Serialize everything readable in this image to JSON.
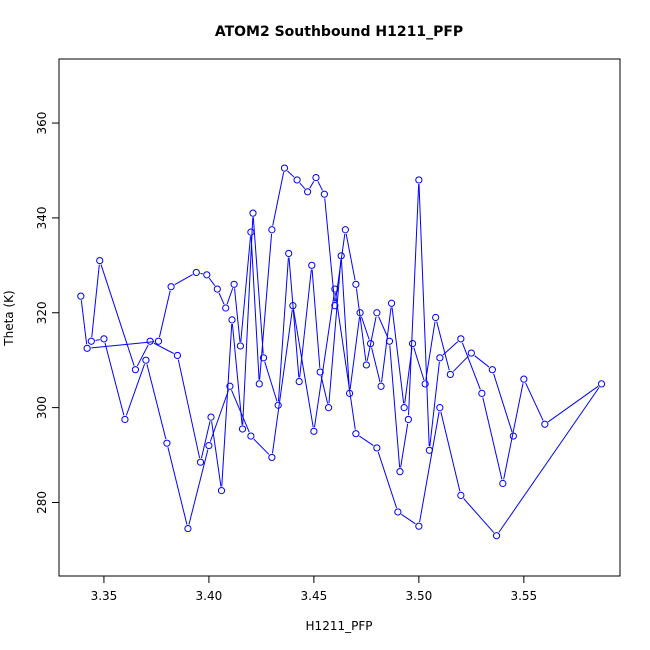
{
  "chart_data": {
    "type": "line",
    "title": "ATOM2 Southbound H1211_PFP",
    "xlabel": "H1211_PFP",
    "ylabel": "Theta (K)",
    "xlim": [
      3.3286,
      3.5958
    ],
    "ylim": [
      264.5,
      373.5
    ],
    "xticks": [
      "3.35",
      "3.40",
      "3.45",
      "3.50",
      "3.55"
    ],
    "yticks": [
      "280",
      "300",
      "320",
      "340",
      "360"
    ],
    "grid": false,
    "legend": "none",
    "line_color": "#0000ff",
    "marker": "open-circle",
    "series": [
      {
        "x": [
          3.339,
          3.342,
          3.376,
          3.382,
          3.394,
          3.399,
          3.404,
          3.408,
          3.412,
          3.415,
          3.42,
          3.424,
          3.43,
          3.436,
          3.442,
          3.447,
          3.451,
          3.455,
          3.46,
          3.465,
          3.47,
          3.475,
          3.48,
          3.486,
          3.491,
          3.495,
          3.5,
          3.505,
          3.51,
          3.52,
          3.53,
          3.54,
          3.55,
          3.56,
          3.587,
          3.537,
          3.52,
          3.51,
          3.5,
          3.49,
          3.48,
          3.47,
          3.46,
          3.45,
          3.44,
          3.43,
          3.42,
          3.41,
          3.4,
          3.39,
          3.38,
          3.37,
          3.36,
          3.35,
          3.344,
          3.348,
          3.365,
          3.372,
          3.385,
          3.396,
          3.401,
          3.406,
          3.411,
          3.416,
          3.421,
          3.426,
          3.433,
          3.438,
          3.443,
          3.449,
          3.453,
          3.457,
          3.463,
          3.467,
          3.472,
          3.477,
          3.482,
          3.487,
          3.493,
          3.497,
          3.503,
          3.508,
          3.515,
          3.525,
          3.535,
          3.545
        ],
        "y": [
          323.5,
          312.5,
          314.0,
          325.5,
          328.5,
          328.0,
          325.0,
          321.0,
          326.0,
          313.0,
          337.0,
          305.0,
          337.5,
          350.5,
          348.0,
          345.5,
          348.5,
          345.0,
          321.5,
          337.5,
          326.0,
          309.0,
          320.0,
          314.0,
          286.5,
          297.5,
          348.0,
          291.0,
          310.5,
          314.5,
          303.0,
          284.0,
          306.0,
          296.5,
          305.0,
          273.0,
          281.5,
          300.0,
          275.0,
          278.0,
          291.5,
          294.5,
          325.0,
          295.0,
          321.5,
          289.5,
          294.0,
          304.5,
          292.0,
          274.5,
          292.5,
          310.0,
          297.5,
          314.5,
          314.0,
          331.0,
          308.0,
          314.0,
          311.0,
          288.5,
          298.0,
          282.5,
          318.5,
          295.5,
          341.0,
          310.5,
          300.5,
          332.5,
          305.5,
          330.0,
          307.5,
          300.0,
          332.0,
          303.0,
          320.0,
          313.5,
          304.5,
          322.0,
          300.0,
          313.5,
          305.0,
          319.0,
          307.0,
          311.5,
          308.0,
          294.0
        ]
      }
    ]
  }
}
